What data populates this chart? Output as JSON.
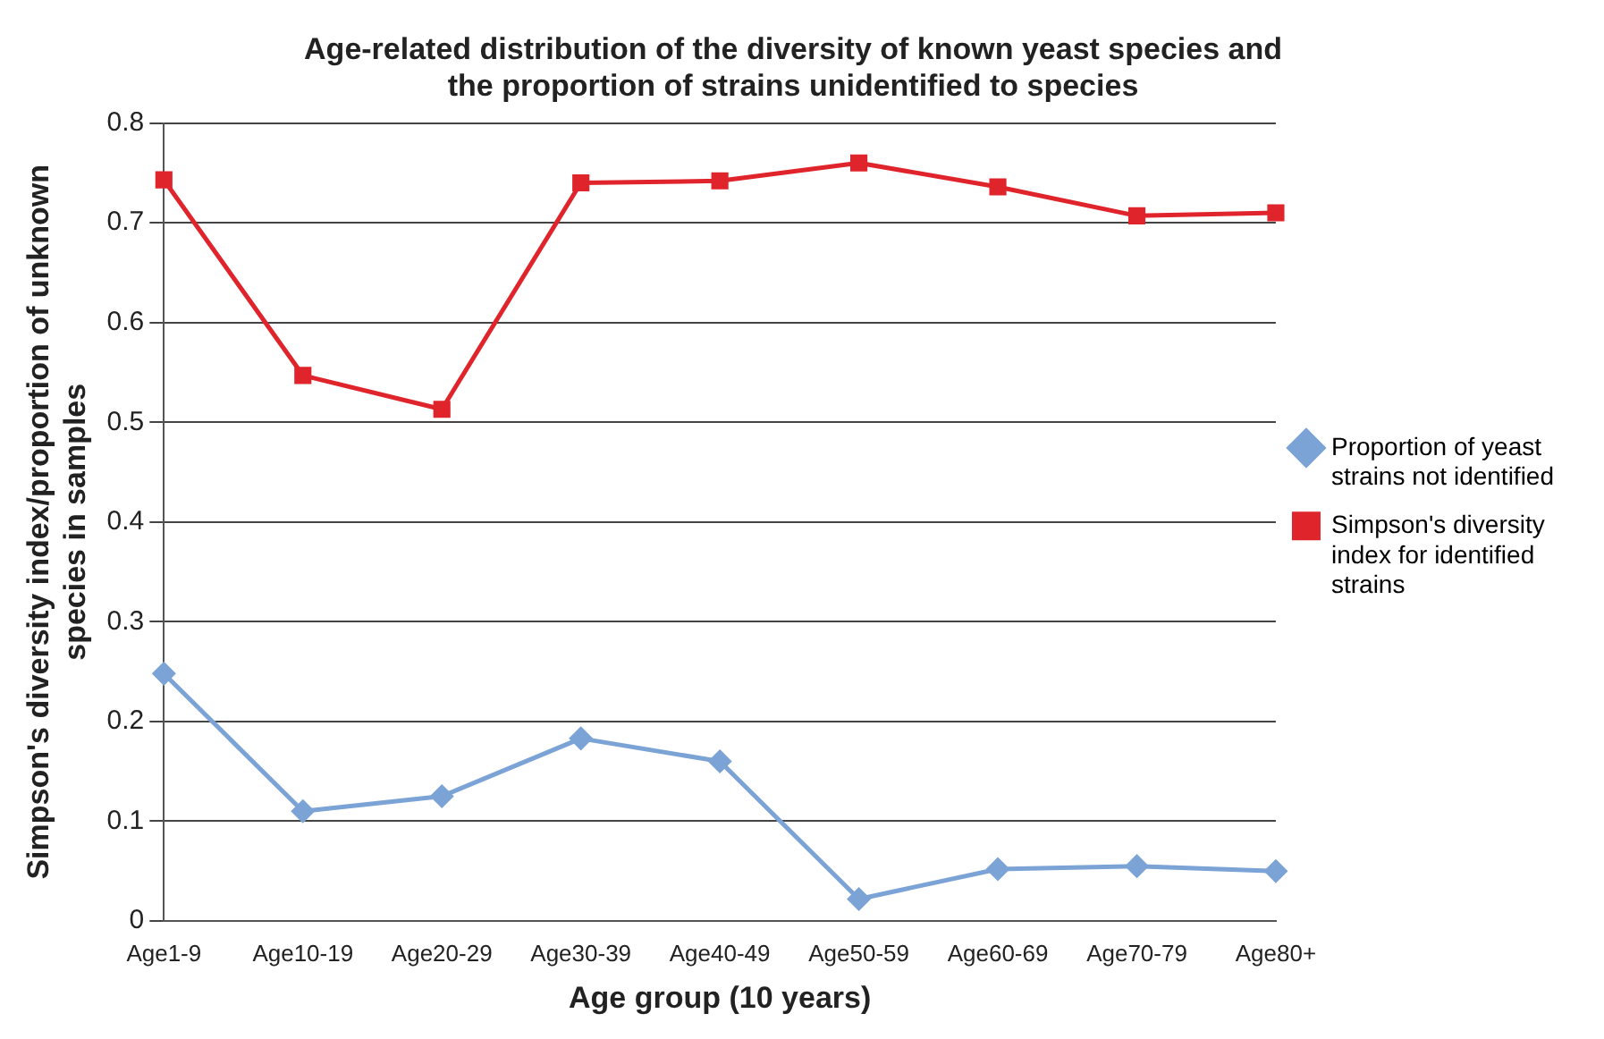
{
  "chart_data": {
    "type": "line",
    "title": "Age-related distribution of the diversity of known yeast species and the proportion of strains unidentified to species",
    "xlabel": "Age group (10 years)",
    "ylabel": "Simpson's diversity index/proportion of unknown species in samples",
    "categories": [
      "Age1-9",
      "Age10-19",
      "Age20-29",
      "Age30-39",
      "Age40-49",
      "Age50-59",
      "Age60-69",
      "Age70-79",
      "Age80+"
    ],
    "series": [
      {
        "name": "Proportion of yeast strains not identified",
        "color": "#7ba3d6",
        "marker": "diamond",
        "values": [
          0.248,
          0.11,
          0.125,
          0.183,
          0.16,
          0.022,
          0.052,
          0.055,
          0.05
        ]
      },
      {
        "name": "Simpson's diversity index for identified strains",
        "color": "#e0242b",
        "marker": "square",
        "values": [
          0.743,
          0.547,
          0.513,
          0.74,
          0.742,
          0.76,
          0.736,
          0.707,
          0.71
        ]
      }
    ],
    "ylim": [
      0,
      0.8
    ],
    "yticks": [
      0,
      0.1,
      0.2,
      0.3,
      0.4,
      0.5,
      0.6,
      0.7,
      0.8
    ],
    "grid": "y",
    "legend": "right"
  }
}
